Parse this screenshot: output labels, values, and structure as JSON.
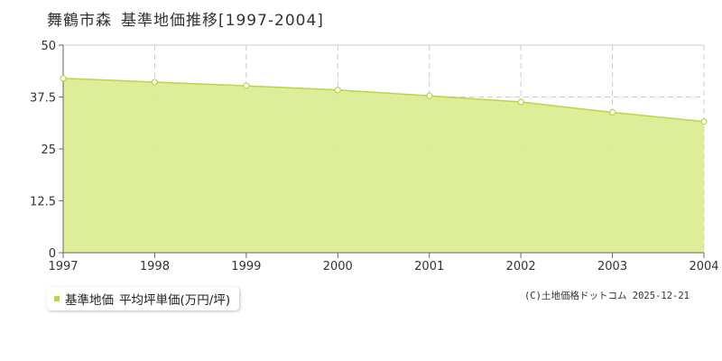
{
  "title": {
    "location": "舞鶴市森",
    "subject": "基準地価推移",
    "range": "[1997-2004]"
  },
  "legend": {
    "series_label": "基準地価",
    "unit_label": "平均坪単価(万円/坪)"
  },
  "credit": "(C)土地価格ドットコム 2025-12-21",
  "colors": {
    "fill": "#dcec93",
    "line": "#b5d93f",
    "point_fill": "#ffffff",
    "point_stroke": "#b5d93f",
    "grid": "#cccccc",
    "axis": "#666666",
    "legend_swatch": "#b5d93f"
  },
  "chart_data": {
    "type": "area",
    "x": [
      "1997",
      "1998",
      "1999",
      "2000",
      "2001",
      "2002",
      "2003",
      "2004"
    ],
    "series": [
      {
        "name": "基準地価",
        "values": [
          42.0,
          41.1,
          40.2,
          39.2,
          37.8,
          36.3,
          33.8,
          31.6
        ]
      }
    ],
    "ylim": [
      0,
      50
    ],
    "yticks": [
      "0",
      "12.5",
      "25",
      "37.5",
      "50"
    ],
    "grid": true
  }
}
